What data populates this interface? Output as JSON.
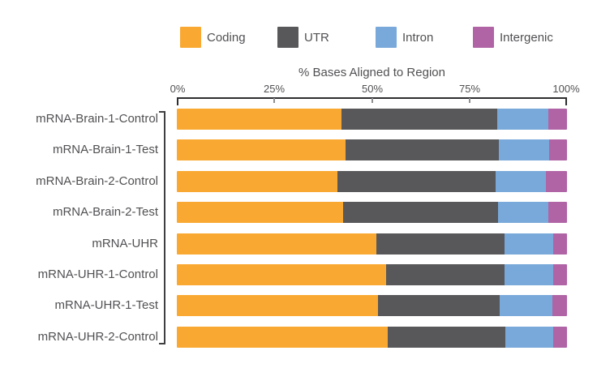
{
  "legend": {
    "items": [
      {
        "label": "Coding",
        "color": "#F9A932"
      },
      {
        "label": "UTR",
        "color": "#58585A"
      },
      {
        "label": "Intron",
        "color": "#79A9DA"
      },
      {
        "label": "Intergenic",
        "color": "#B064A5"
      }
    ]
  },
  "chart_data": {
    "type": "bar",
    "stacked": true,
    "orientation": "horizontal",
    "title": "% Bases Aligned to Region",
    "x_ticks": [
      "0%",
      "25%",
      "50%",
      "75%",
      "100%"
    ],
    "xlim": [
      0,
      100
    ],
    "grid": false,
    "legend_position": "top",
    "categories": [
      "mRNA-Brain-1-Control",
      "mRNA-Brain-1-Test",
      "mRNA-Brain-2-Control",
      "mRNA-Brain-2-Test",
      "mRNA-UHR",
      "mRNA-UHR-1-Control",
      "mRNA-UHR-1-Test",
      "mRNA-UHR-2-Control"
    ],
    "series": [
      {
        "name": "Coding",
        "color": "#F9A932",
        "values": [
          42.3,
          43.3,
          41.2,
          42.7,
          51.1,
          53.6,
          51.6,
          54.1
        ]
      },
      {
        "name": "UTR",
        "color": "#58585A",
        "values": [
          39.8,
          39.3,
          40.6,
          39.6,
          32.8,
          30.4,
          31.2,
          30.2
        ]
      },
      {
        "name": "Intron",
        "color": "#79A9DA",
        "values": [
          13.1,
          12.9,
          12.8,
          13.0,
          12.5,
          12.5,
          13.4,
          12.2
        ]
      },
      {
        "name": "Intergenic",
        "color": "#B064A5",
        "values": [
          4.8,
          4.5,
          5.4,
          4.7,
          3.6,
          3.5,
          3.8,
          3.5
        ]
      }
    ]
  }
}
